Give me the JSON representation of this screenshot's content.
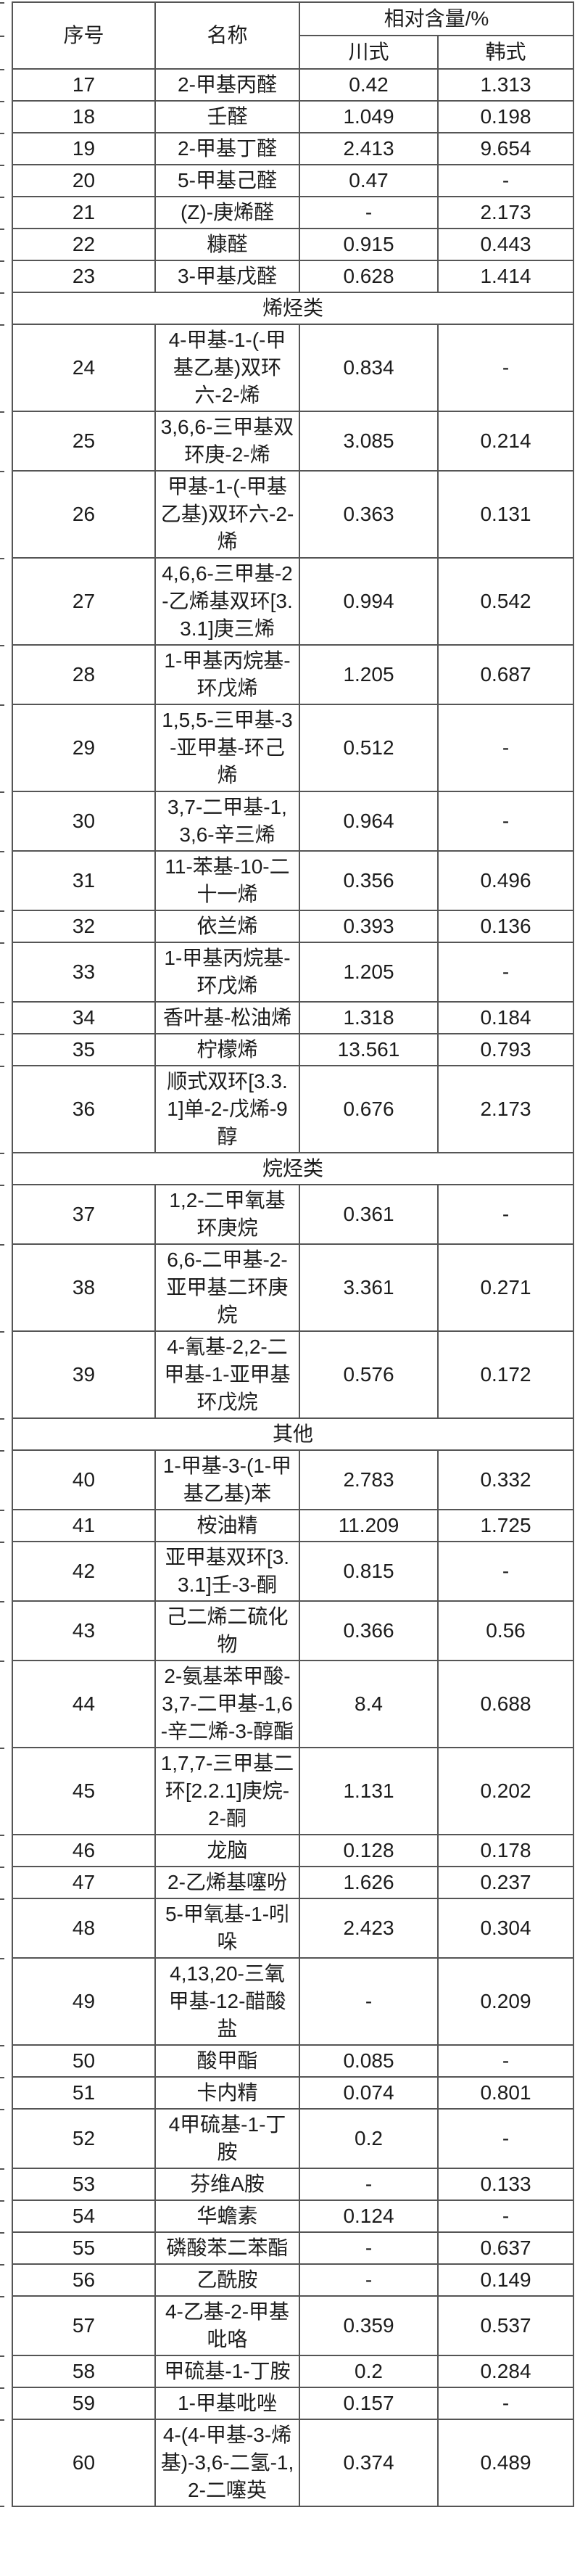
{
  "page": {
    "background_color": "#ffffff",
    "text_color": "#1c1c1c",
    "border_color": "#555555"
  },
  "table": {
    "header": {
      "no": "序号",
      "name": "名称",
      "content_group": "相对含量/%",
      "chuan": "川式",
      "han": "韩式"
    },
    "sections": [
      {
        "title": "",
        "rows": [
          {
            "no": "17",
            "name": "2-甲基丙醛",
            "chuan": "0.42",
            "han": "1.313"
          },
          {
            "no": "18",
            "name": "壬醛",
            "chuan": "1.049",
            "han": "0.198"
          },
          {
            "no": "19",
            "name": "2-甲基丁醛",
            "chuan": "2.413",
            "han": "9.654"
          },
          {
            "no": "20",
            "name": "5-甲基己醛",
            "chuan": "0.47",
            "han": "-"
          },
          {
            "no": "21",
            "name": "(Z)-庚烯醛",
            "chuan": "-",
            "han": "2.173"
          },
          {
            "no": "22",
            "name": "糠醛",
            "chuan": "0.915",
            "han": "0.443"
          },
          {
            "no": "23",
            "name": "3-甲基戊醛",
            "chuan": "0.628",
            "han": "1.414"
          }
        ]
      },
      {
        "title": "烯烃类",
        "rows": [
          {
            "no": "24",
            "name": "4-甲基-1-(-甲基乙基)双环六-2-烯",
            "chuan": "0.834",
            "han": "-"
          },
          {
            "no": "25",
            "name": "3,6,6-三甲基双环庚-2-烯",
            "chuan": "3.085",
            "han": "0.214"
          },
          {
            "no": "26",
            "name": "甲基-1-(-甲基乙基)双环六-2-烯",
            "chuan": "0.363",
            "han": "0.131"
          },
          {
            "no": "27",
            "name": "4,6,6-三甲基-2-乙烯基双环[3.3.1]庚三烯",
            "chuan": "0.994",
            "han": "0.542"
          },
          {
            "no": "28",
            "name": "1-甲基丙烷基-环戊烯",
            "chuan": "1.205",
            "han": "0.687"
          },
          {
            "no": "29",
            "name": "1,5,5-三甲基-3-亚甲基-环己烯",
            "chuan": "0.512",
            "han": "-"
          },
          {
            "no": "30",
            "name": "3,7-二甲基-1,3,6-辛三烯",
            "chuan": "0.964",
            "han": "-"
          },
          {
            "no": "31",
            "name": "11-苯基-10-二十一烯",
            "chuan": "0.356",
            "han": "0.496"
          },
          {
            "no": "32",
            "name": "依兰烯",
            "chuan": "0.393",
            "han": "0.136"
          },
          {
            "no": "33",
            "name": "1-甲基丙烷基-环戊烯",
            "chuan": "1.205",
            "han": "-"
          },
          {
            "no": "34",
            "name": "香叶基-松油烯",
            "chuan": "1.318",
            "han": "0.184"
          },
          {
            "no": "35",
            "name": "柠檬烯",
            "chuan": "13.561",
            "han": "0.793"
          },
          {
            "no": "36",
            "name": "顺式双环[3.3.1]单-2-戊烯-9醇",
            "chuan": "0.676",
            "han": "2.173"
          }
        ]
      },
      {
        "title": "烷烃类",
        "rows": [
          {
            "no": "37",
            "name": "1,2-二甲氧基环庚烷",
            "chuan": "0.361",
            "han": "-"
          },
          {
            "no": "38",
            "name": "6,6-二甲基-2-亚甲基二环庚烷",
            "chuan": "3.361",
            "han": "0.271"
          },
          {
            "no": "39",
            "name": "4-氰基-2,2-二甲基-1-亚甲基环戊烷",
            "chuan": "0.576",
            "han": "0.172"
          }
        ]
      },
      {
        "title": "其他",
        "rows": [
          {
            "no": "40",
            "name": "1-甲基-3-(1-甲基乙基)苯",
            "chuan": "2.783",
            "han": "0.332"
          },
          {
            "no": "41",
            "name": "桉油精",
            "chuan": "11.209",
            "han": "1.725"
          },
          {
            "no": "42",
            "name": "亚甲基双环[3.3.1]壬-3-酮",
            "chuan": "0.815",
            "han": "-"
          },
          {
            "no": "43",
            "name": "己二烯二硫化物",
            "chuan": "0.366",
            "han": "0.56"
          },
          {
            "no": "44",
            "name": "2-氨基苯甲酸-3,7-二甲基-1,6-辛二烯-3-醇酯",
            "chuan": "8.4",
            "han": "0.688"
          },
          {
            "no": "45",
            "name": "1,7,7-三甲基二环[2.2.1]庚烷-2-酮",
            "chuan": "1.131",
            "han": "0.202"
          },
          {
            "no": "46",
            "name": "龙脑",
            "chuan": "0.128",
            "han": "0.178"
          },
          {
            "no": "47",
            "name": "2-乙烯基噻吩",
            "chuan": "1.626",
            "han": "0.237"
          },
          {
            "no": "48",
            "name": "5-甲氧基-1-吲哚",
            "chuan": "2.423",
            "han": "0.304"
          },
          {
            "no": "49",
            "name": "4,13,20-三氧甲基-12-醋酸盐",
            "chuan": "-",
            "han": "0.209"
          },
          {
            "no": "50",
            "name": "酸甲酯",
            "chuan": "0.085",
            "han": "-"
          },
          {
            "no": "51",
            "name": "卡内精",
            "chuan": "0.074",
            "han": "0.801"
          },
          {
            "no": "52",
            "name": "4甲硫基-1-丁胺",
            "chuan": "0.2",
            "han": "-"
          },
          {
            "no": "53",
            "name": "芬维A胺",
            "chuan": "-",
            "han": "0.133"
          },
          {
            "no": "54",
            "name": "华蟾素",
            "chuan": "0.124",
            "han": "-"
          },
          {
            "no": "55",
            "name": "磷酸苯二苯酯",
            "chuan": "-",
            "han": "0.637"
          },
          {
            "no": "56",
            "name": "乙酰胺",
            "chuan": "-",
            "han": "0.149"
          },
          {
            "no": "57",
            "name": "4-乙基-2-甲基吡咯",
            "chuan": "0.359",
            "han": "0.537"
          },
          {
            "no": "58",
            "name": "甲硫基-1-丁胺",
            "chuan": "0.2",
            "han": "0.284"
          },
          {
            "no": "59",
            "name": "1-甲基吡唑",
            "chuan": "0.157",
            "han": "-"
          },
          {
            "no": "60",
            "name": "4-(4-甲基-3-烯基)-3,6-二氢-1,2-二噻英",
            "chuan": "0.374",
            "han": "0.489"
          }
        ]
      }
    ]
  }
}
